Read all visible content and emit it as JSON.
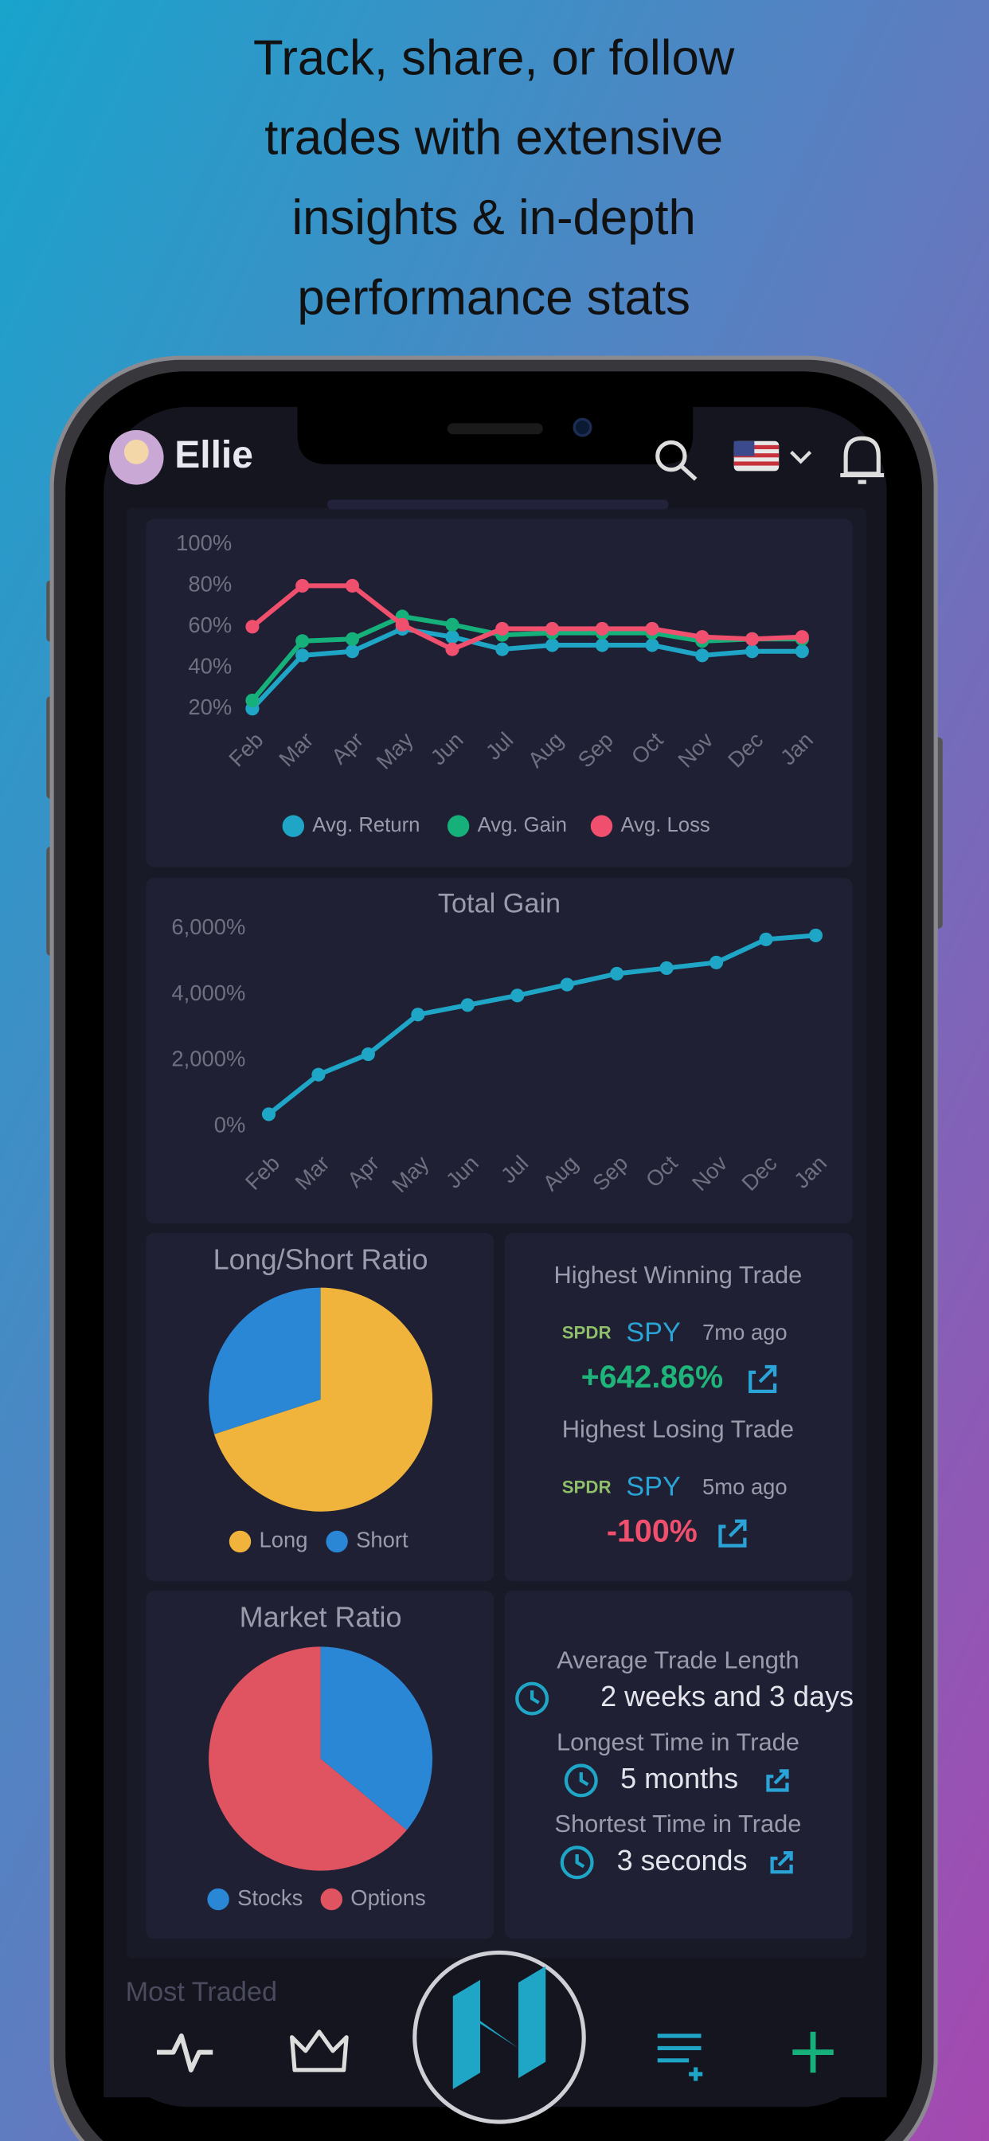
{
  "headline": [
    "Track, share, or follow",
    "trades with extensive",
    "insights & in-depth",
    "performance stats"
  ],
  "header": {
    "user": "Ellie"
  },
  "chart_data": [
    {
      "type": "line",
      "categories": [
        "Feb",
        "Mar",
        "Apr",
        "May",
        "Jun",
        "Jul",
        "Aug",
        "Sep",
        "Oct",
        "Nov",
        "Dec",
        "Jan"
      ],
      "series": [
        {
          "name": "Avg. Return",
          "color": "#1fa5c6",
          "values": [
            20,
            46,
            48,
            59,
            55,
            49,
            51,
            51,
            51,
            46,
            48,
            48
          ]
        },
        {
          "name": "Avg. Gain",
          "color": "#16b07a",
          "values": [
            24,
            53,
            54,
            65,
            61,
            56,
            57,
            57,
            57,
            53,
            54,
            54
          ]
        },
        {
          "name": "Avg. Loss",
          "color": "#f0506e",
          "values": [
            60,
            80,
            80,
            61,
            49,
            59,
            59,
            59,
            59,
            55,
            54,
            55
          ]
        }
      ],
      "ylim": [
        20,
        100
      ],
      "yticks": [
        {
          "value": 20,
          "label": "20%"
        },
        {
          "value": 40,
          "label": "40%"
        },
        {
          "value": 60,
          "label": "60%"
        },
        {
          "value": 80,
          "label": "80%"
        },
        {
          "value": 100,
          "label": "100%"
        }
      ],
      "grid": false,
      "legend": "bottom"
    },
    {
      "type": "line",
      "title": "Total Gain",
      "categories": [
        "Feb",
        "Mar",
        "Apr",
        "May",
        "Jun",
        "Jul",
        "Aug",
        "Sep",
        "Oct",
        "Nov",
        "Dec",
        "Jan"
      ],
      "series": [
        {
          "color": "#1fa5c6",
          "values": [
            370,
            1570,
            2190,
            3390,
            3680,
            3970,
            4300,
            4630,
            4800,
            4970,
            5670,
            5790
          ]
        }
      ],
      "ylim": [
        0,
        6000
      ],
      "yticks": [
        {
          "value": 0,
          "label": "0%"
        },
        {
          "value": 2000,
          "label": "2,000%"
        },
        {
          "value": 4000,
          "label": "4,000%"
        },
        {
          "value": 6000,
          "label": "6,000%"
        }
      ],
      "grid": false
    },
    {
      "type": "pie",
      "title": "Long/Short Ratio",
      "categories": [
        "Long",
        "Short"
      ],
      "values": [
        70,
        30
      ],
      "colors": [
        "#f0b43c",
        "#2a87d6"
      ],
      "legend": "bottom"
    },
    {
      "type": "pie",
      "title": "Market Ratio",
      "categories": [
        "Stocks",
        "Options"
      ],
      "values": [
        36,
        64
      ],
      "colors": [
        "#2a87d6",
        "#e05462"
      ],
      "legend": "bottom"
    }
  ],
  "trade_highlights": [
    {
      "title": "Highest Winning Trade",
      "issuer": "SPDR",
      "ticker": "SPY",
      "age": "7mo ago",
      "change": "+642.86%",
      "color": "#1fb57a"
    },
    {
      "title": "Highest Losing Trade",
      "issuer": "SPDR",
      "ticker": "SPY",
      "age": "5mo ago",
      "change": "-100%",
      "color": "#f0506e"
    }
  ],
  "trade_length": [
    {
      "label": "Average Trade Length",
      "value": "2 weeks and 3 days"
    },
    {
      "label": "Longest Time in Trade",
      "value": "5 months"
    },
    {
      "label": "Shortest Time in Trade",
      "value": "3 seconds"
    }
  ],
  "next_section": "Most Traded"
}
